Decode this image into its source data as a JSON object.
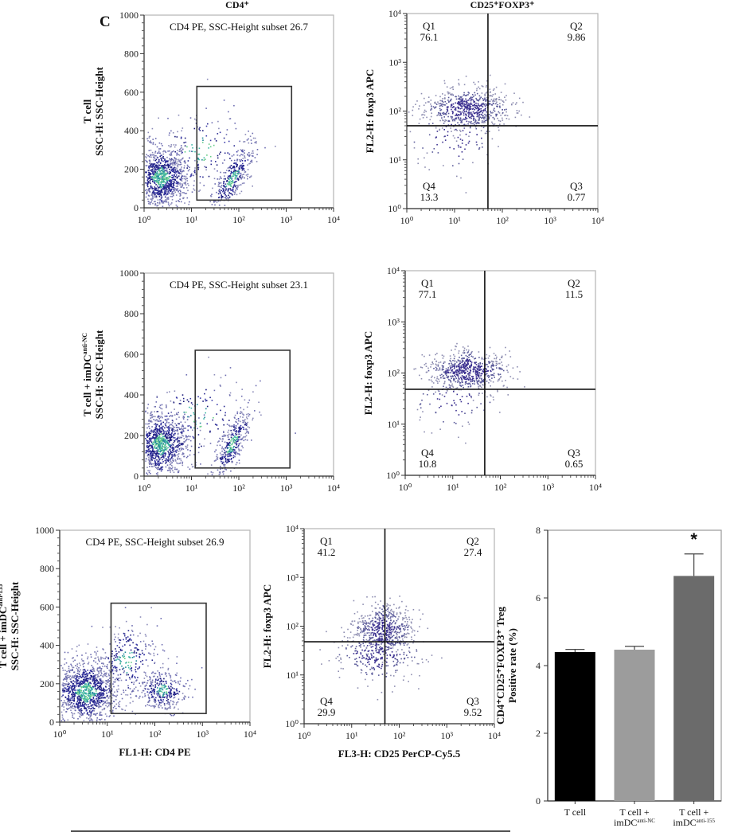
{
  "figure": {
    "panel_letter": "C",
    "column_titles": [
      "CD4⁺",
      "CD25⁺FOXP3⁺"
    ],
    "footer_rule": true
  },
  "chart_data": [
    {
      "type": "scatter",
      "id": "cd4-tcell",
      "group": "T cell",
      "ylabel_lines": [
        "T cell",
        "SSC-H: SSC-Height"
      ],
      "xlabel": "",
      "x_scale": "log",
      "xlim": [
        1,
        10000
      ],
      "ylim": [
        0,
        1000
      ],
      "x_ticks": [
        "10⁰",
        "10¹",
        "10²",
        "10³",
        "10⁴"
      ],
      "y_ticks": [
        "0",
        "200",
        "400",
        "600",
        "800",
        "1000"
      ],
      "gate_label": "CD4 PE, SSC-Height subset 26.7",
      "gate": {
        "x": [
          13,
          1300
        ],
        "y": [
          40,
          630
        ]
      },
      "seed": 11,
      "clusters": [
        {
          "cx_log": 0.35,
          "cy": 160,
          "sx_log": 0.3,
          "sy": 80,
          "n": 1100
        },
        {
          "cx_log": 1.85,
          "cy": 150,
          "sx_log": 0.22,
          "sy": 55,
          "n": 380,
          "tilt": 110
        },
        {
          "cx_log": 1.2,
          "cy": 300,
          "sx_log": 0.6,
          "sy": 110,
          "n": 160
        }
      ]
    },
    {
      "type": "scatter",
      "id": "treg-tcell",
      "group": "T cell",
      "ylabel_lines": [
        "FL2-H: foxp3 APC"
      ],
      "xlabel": "",
      "x_scale": "log",
      "y_scale": "log",
      "xlim": [
        1,
        10000
      ],
      "ylim": [
        1,
        10000
      ],
      "x_ticks": [
        "10⁰",
        "10¹",
        "10²",
        "10³",
        "10⁴"
      ],
      "y_ticks": [
        "10⁰",
        "10¹",
        "10²",
        "10³",
        "10⁴"
      ],
      "quadrant_split": {
        "x": 50,
        "y": 50
      },
      "quadrants": [
        {
          "name": "Q1",
          "value": "76.1"
        },
        {
          "name": "Q2",
          "value": "9.86"
        },
        {
          "name": "Q3",
          "value": "0.77"
        },
        {
          "name": "Q4",
          "value": "13.3"
        }
      ],
      "seed": 23,
      "clusters": [
        {
          "cx_log": 1.25,
          "cy_log": 2.05,
          "sx_log": 0.45,
          "sy_log": 0.22,
          "n": 650
        },
        {
          "cx_log": 1.0,
          "cy_log": 1.45,
          "sx_log": 0.5,
          "sy_log": 0.35,
          "n": 90
        }
      ]
    },
    {
      "type": "scatter",
      "id": "cd4-nc",
      "group": "T cell + imDC anti-NC",
      "ylabel_lines": [
        "T cell + imDC",
        "SSC-H: SSC-Height"
      ],
      "ylabel_sup": "anti-NC",
      "xlabel": "",
      "x_scale": "log",
      "xlim": [
        1,
        10000
      ],
      "ylim": [
        0,
        1000
      ],
      "x_ticks": [
        "10⁰",
        "10¹",
        "10²",
        "10³",
        "10⁴"
      ],
      "y_ticks": [
        "0",
        "200",
        "400",
        "600",
        "800",
        "1000"
      ],
      "gate_label": "CD4 PE, SSC-Height subset 23.1",
      "gate": {
        "x": [
          12,
          1200
        ],
        "y": [
          40,
          620
        ]
      },
      "seed": 37,
      "clusters": [
        {
          "cx_log": 0.35,
          "cy": 160,
          "sx_log": 0.3,
          "sy": 85,
          "n": 1100
        },
        {
          "cx_log": 1.85,
          "cy": 160,
          "sx_log": 0.2,
          "sy": 55,
          "n": 350,
          "tilt": 110
        },
        {
          "cx_log": 1.1,
          "cy": 300,
          "sx_log": 0.6,
          "sy": 110,
          "n": 160
        }
      ]
    },
    {
      "type": "scatter",
      "id": "treg-nc",
      "group": "T cell + imDC anti-NC",
      "ylabel_lines": [
        "FL2-H: foxp3 APC"
      ],
      "xlabel": "",
      "x_scale": "log",
      "y_scale": "log",
      "xlim": [
        1,
        10000
      ],
      "ylim": [
        1,
        10000
      ],
      "x_ticks": [
        "10⁰",
        "10¹",
        "10²",
        "10³",
        "10⁴"
      ],
      "y_ticks": [
        "10⁰",
        "10¹",
        "10²",
        "10³",
        "10⁴"
      ],
      "quadrant_split": {
        "x": 47,
        "y": 48
      },
      "quadrants": [
        {
          "name": "Q1",
          "value": "77.1"
        },
        {
          "name": "Q2",
          "value": "11.5"
        },
        {
          "name": "Q3",
          "value": "0.65"
        },
        {
          "name": "Q4",
          "value": "10.8"
        }
      ],
      "seed": 41,
      "clusters": [
        {
          "cx_log": 1.3,
          "cy_log": 2.05,
          "sx_log": 0.42,
          "sy_log": 0.2,
          "n": 650
        },
        {
          "cx_log": 1.0,
          "cy_log": 1.45,
          "sx_log": 0.45,
          "sy_log": 0.3,
          "n": 80
        }
      ]
    },
    {
      "type": "scatter",
      "id": "cd4-155",
      "group": "T cell + imDC anti-155",
      "ylabel_lines": [
        "T cell + imDC",
        "SSC-H: SSC-Height"
      ],
      "ylabel_sup": "anti-155",
      "xlabel": "FL1-H: CD4 PE",
      "x_scale": "log",
      "xlim": [
        1,
        10000
      ],
      "ylim": [
        0,
        1000
      ],
      "x_ticks": [
        "10⁰",
        "10¹",
        "10²",
        "10³",
        "10⁴"
      ],
      "y_ticks": [
        "0",
        "200",
        "400",
        "600",
        "800",
        "1000"
      ],
      "gate_label": "CD4 PE, SSC-Height subset 26.9",
      "gate": {
        "x": [
          12,
          1200
        ],
        "y": [
          45,
          620
        ]
      },
      "seed": 53,
      "clusters": [
        {
          "cx_log": 0.55,
          "cy": 160,
          "sx_log": 0.35,
          "sy": 85,
          "n": 1200
        },
        {
          "cx_log": 2.15,
          "cy": 170,
          "sx_log": 0.25,
          "sy": 55,
          "n": 330
        },
        {
          "cx_log": 1.4,
          "cy": 330,
          "sx_log": 0.35,
          "sy": 100,
          "n": 260
        }
      ]
    },
    {
      "type": "scatter",
      "id": "treg-155",
      "group": "T cell + imDC anti-155",
      "ylabel_lines": [
        "FL2-H: foxp3 APC"
      ],
      "xlabel": "FL3-H: CD25 PerCP-Cy5.5",
      "x_scale": "log",
      "y_scale": "log",
      "xlim": [
        1,
        10000
      ],
      "ylim": [
        1,
        10000
      ],
      "x_ticks": [
        "10⁰",
        "10¹",
        "10²",
        "10³",
        "10⁴"
      ],
      "y_ticks": [
        "10⁰",
        "10¹",
        "10²",
        "10³",
        "10⁴"
      ],
      "quadrant_split": {
        "x": 50,
        "y": 48
      },
      "quadrants": [
        {
          "name": "Q1",
          "value": "41.2"
        },
        {
          "name": "Q2",
          "value": "27.4"
        },
        {
          "name": "Q3",
          "value": "9.52"
        },
        {
          "name": "Q4",
          "value": "29.9"
        }
      ],
      "seed": 67,
      "clusters": [
        {
          "cx_log": 1.65,
          "cy_log": 1.95,
          "sx_log": 0.3,
          "sy_log": 0.25,
          "n": 500
        },
        {
          "cx_log": 1.55,
          "cy_log": 1.45,
          "sx_log": 0.45,
          "sy_log": 0.3,
          "n": 300
        }
      ]
    },
    {
      "type": "bar",
      "id": "treg-rate",
      "categories": [
        "T cell",
        "T cell + imDC anti-NC",
        "T cell + imDC anti-155"
      ],
      "category_lines": [
        {
          "line1": "T cell",
          "line2": "",
          "sup": ""
        },
        {
          "line1": "T cell +",
          "line2": "imDC",
          "sup": "anti-NC"
        },
        {
          "line1": "T cell +",
          "line2": "imDC",
          "sup": "anti-155"
        }
      ],
      "values": [
        4.4,
        4.47,
        6.65
      ],
      "errors": [
        0.08,
        0.1,
        0.65
      ],
      "colors": [
        "#000000",
        "#9c9c9c",
        "#6b6b6b"
      ],
      "significance": [
        "",
        "",
        "*"
      ],
      "ylabel_lines": [
        "CD4⁺CD25⁺FOXP3⁺ Treg",
        "Positive rate (%)"
      ],
      "xlabel": "",
      "ylim": [
        0,
        8
      ],
      "y_ticks": [
        "0",
        "2",
        "4",
        "6",
        "8"
      ]
    }
  ]
}
